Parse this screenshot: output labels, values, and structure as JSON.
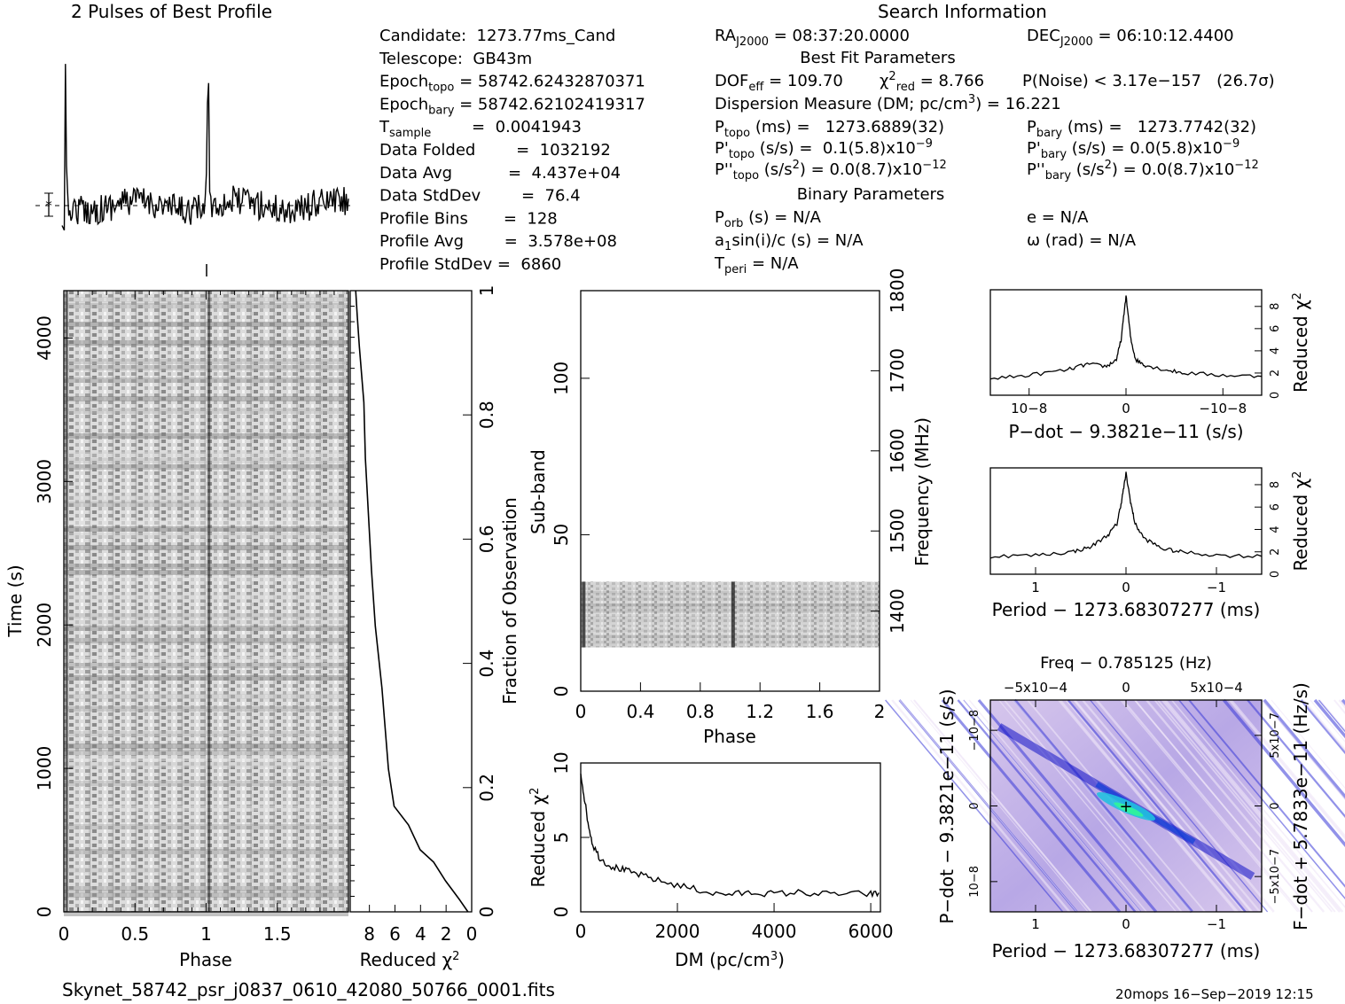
{
  "header": {
    "profile_title": "2 Pulses of Best Profile",
    "search_title": "Search Information"
  },
  "candidate_info": [
    {
      "label": "Candidate:  1273.77ms_Cand"
    },
    {
      "label": "Telescope:  GB43m"
    },
    {
      "label": "Epoch",
      "sub": "topo",
      "rest": " = 58742.62432870371"
    },
    {
      "label": "Epoch",
      "sub": "bary",
      "rest": " = 58742.62102419317"
    },
    {
      "label": "T",
      "sub": "sample",
      "rest": "        =  0.0041943"
    },
    {
      "label": "Data Folded        =  1032192"
    },
    {
      "label": "Data Avg           =  4.437e+04"
    },
    {
      "label": "Data StdDev        =  76.4"
    },
    {
      "label": "Profile Bins       =  128"
    },
    {
      "label": "Profile Avg        =  3.578e+08"
    },
    {
      "label": "Profile StdDev =  6860"
    }
  ],
  "search_info": {
    "ra": {
      "label": "RA",
      "sub": "J2000",
      "rest": " = 08:37:20.0000"
    },
    "dec": {
      "label": "DEC",
      "sub": "J2000",
      "rest": " = 06:10:12.4400"
    },
    "best_fit_title": "Best Fit Parameters",
    "dof_label": "DOF",
    "dof_sub": "eff",
    "dof_rest": " = 109.70",
    "chi_label": "χ",
    "chi_sup": "2",
    "chi_sub": "red",
    "chi_rest": " = 8.766",
    "pnoise": "P(Noise) < 3.17e−157   (26.7σ)",
    "dm": "Dispersion Measure (DM; pc/cm",
    "dm_sup": "3",
    "dm_rest": ") = 16.221",
    "ptopo": {
      "label": "P",
      "sub": "topo",
      "rest": " (ms) =   1273.6889(32)"
    },
    "pbary": {
      "label": "P",
      "sub": "bary",
      "rest": " (ms) =   1273.7742(32)"
    },
    "pdtopo": {
      "label": "P'",
      "sub": "topo",
      "rest": " (s/s) =  0.1(5.8)x10",
      "sup": "−9"
    },
    "pdbary": {
      "label": "P'",
      "sub": "bary",
      "rest": " (s/s) = 0.0(5.8)x10",
      "sup": "−9"
    },
    "pddtopo": {
      "label": "P''",
      "sub": "topo",
      "rest": " (s/s",
      "sup1": "2",
      "rest2": ") = 0.0(8.7)x10",
      "sup": "−12"
    },
    "pddbary": {
      "label": "P''",
      "sub": "bary",
      "rest": " (s/s",
      "sup1": "2",
      "rest2": ") = 0.0(8.7)x10",
      "sup": "−12"
    },
    "binary_title": "Binary Parameters",
    "porb": {
      "label": "P",
      "sub": "orb",
      "rest": " (s) = N/A"
    },
    "ecc": "e = N/A",
    "a1sini": {
      "label": "a",
      "sub": "1",
      "rest": "sin(i)/c (s) = N/A"
    },
    "omega": "ω (rad) = N/A",
    "tperi": {
      "label": "T",
      "sub": "peri",
      "rest": " = N/A"
    }
  },
  "footer": {
    "filename": "Skynet_58742_psr_j0837_0610_42080_50766_0001.fits",
    "stamp": "20mops 16−Sep−2019 12:15"
  },
  "colors": {
    "ink": "#000000",
    "grey_dark": "#3a3a3a",
    "grey_light": "#e8e8e8",
    "pdot_bg": "#c9b7e6",
    "pdot_blue": "#1a1ad6",
    "pdot_cyan": "#22e0d0"
  },
  "chart_data": [
    {
      "id": "profile",
      "type": "line",
      "title": "2 Pulses of Best Profile",
      "xlabel": "",
      "ylabel": "",
      "xlim": [
        0,
        2
      ],
      "peaks_phase": [
        0.02,
        1.02
      ]
    },
    {
      "id": "time_phase",
      "type": "heatmap",
      "xlabel": "Phase",
      "ylabel": "Time (s)",
      "xlim": [
        0,
        2
      ],
      "ylim": [
        0,
        4330
      ],
      "x_ticks": [
        "0",
        "0.5",
        "1",
        "1.5"
      ],
      "y_ticks": [
        "0",
        "1000",
        "2000",
        "3000",
        "4000"
      ]
    },
    {
      "id": "time_chi2",
      "type": "line",
      "xlabel": "Reduced χ2",
      "ylabel": "Fraction of Observation",
      "xlim": [
        9.5,
        0
      ],
      "ylim": [
        0,
        1
      ],
      "x_ticks": [
        "8",
        "6",
        "4",
        "2",
        "0"
      ],
      "y_ticks": [
        "0",
        "0.2",
        "0.4",
        "0.6",
        "0.8",
        "1"
      ],
      "x": [
        0.3,
        1.0,
        2.0,
        3.0,
        4.0,
        5.0,
        6.0,
        6.5,
        7.0,
        7.5,
        7.8,
        8.0,
        8.3,
        8.5,
        8.8,
        9.0,
        9.1
      ],
      "y": [
        0.0,
        0.02,
        0.05,
        0.08,
        0.1,
        0.14,
        0.17,
        0.23,
        0.36,
        0.46,
        0.55,
        0.62,
        0.73,
        0.82,
        0.91,
        0.96,
        1.0
      ]
    },
    {
      "id": "subband_phase",
      "type": "heatmap",
      "xlabel": "Phase",
      "ylabel": "Sub-band",
      "y2label": "Frequency (MHz)",
      "xlim": [
        0,
        2
      ],
      "ylim": [
        0,
        128
      ],
      "y2lim": [
        1300,
        1800
      ],
      "x_ticks": [
        "0",
        "0.4",
        "0.8",
        "1.2",
        "1.6",
        "2"
      ],
      "y_ticks": [
        "0",
        "50",
        "100"
      ],
      "y2_ticks": [
        "1400",
        "1500",
        "1600",
        "1700",
        "1800"
      ],
      "filled_subbands": [
        14,
        35
      ]
    },
    {
      "id": "dm_chi2",
      "type": "line",
      "xlabel": "DM (pc/cm3)",
      "ylabel": "Reduced χ2",
      "xlim": [
        0,
        6200
      ],
      "ylim": [
        0,
        10
      ],
      "x_ticks": [
        "0",
        "2000",
        "4000",
        "6000"
      ],
      "y_ticks": [
        "0",
        "5",
        "10"
      ],
      "x": [
        0,
        60,
        150,
        250,
        400,
        600,
        800,
        1000,
        1300,
        1600,
        2000,
        2400,
        2800,
        3200,
        3600,
        4000,
        4500,
        5000,
        5500,
        6000,
        6200
      ],
      "y": [
        9.3,
        8.0,
        6.0,
        4.5,
        3.6,
        3.1,
        2.9,
        2.7,
        2.4,
        2.1,
        1.8,
        1.5,
        1.2,
        1.2,
        1.3,
        1.2,
        1.3,
        1.2,
        1.2,
        1.2,
        1.2
      ]
    },
    {
      "id": "pdot_chi2",
      "type": "line",
      "xlabel": "P−dot − 9.3821e−11 (s/s)",
      "ylabel": "Reduced χ2",
      "xlim": [
        1.4e-08,
        -1.4e-08
      ],
      "ylim": [
        0,
        9.5
      ],
      "x_ticks": [
        "10−8",
        "0",
        "−10−8"
      ],
      "y_ticks": [
        "0",
        "2",
        "4",
        "6",
        "8"
      ],
      "x": [
        1.4e-08,
        1e-08,
        6e-09,
        4e-09,
        2e-09,
        1e-09,
        5e-10,
        0,
        -5e-10,
        -1e-09,
        -2e-09,
        -4e-09,
        -6e-09,
        -1e-08,
        -1.4e-08
      ],
      "y": [
        1.5,
        1.8,
        2.3,
        2.8,
        2.6,
        3.2,
        5.0,
        9.0,
        5.0,
        3.2,
        2.7,
        2.3,
        2.0,
        1.8,
        1.7
      ]
    },
    {
      "id": "period_chi2",
      "type": "line",
      "xlabel": "Period − 1273.68307277 (ms)",
      "ylabel": "Reduced χ2",
      "xlim": [
        1.5,
        -1.5
      ],
      "ylim": [
        0,
        9.5
      ],
      "x_ticks": [
        "1",
        "0",
        "−1"
      ],
      "y_ticks": [
        "0",
        "2",
        "4",
        "6",
        "8"
      ],
      "x": [
        1.5,
        1.0,
        0.6,
        0.4,
        0.2,
        0.1,
        0.05,
        0,
        -0.05,
        -0.1,
        -0.2,
        -0.4,
        -0.6,
        -1.0,
        -1.5
      ],
      "y": [
        1.6,
        1.7,
        2.0,
        2.4,
        3.5,
        4.5,
        6.5,
        9.0,
        6.5,
        4.5,
        3.2,
        2.3,
        2.0,
        1.7,
        1.6
      ]
    },
    {
      "id": "p_pdot",
      "type": "heatmap",
      "title": "Freq − 0.785125 (Hz)",
      "xlabel": "Period − 1273.68307277 (ms)",
      "ylabel": "P−dot − 9.3821e−11 (s/s)",
      "y2label": "F−dot + 5.7833e−11 (Hz/s)",
      "x_ticks": [
        "1",
        "0",
        "−1"
      ],
      "x2_ticks": [
        "−5x10−4",
        "0",
        "5x10−4"
      ],
      "y_ticks": [
        "10−8",
        "0",
        "−10−8"
      ],
      "y2_ticks": [
        "−5x10−7",
        "0",
        "5x10−7"
      ],
      "best_fit": [
        0,
        0
      ]
    }
  ]
}
